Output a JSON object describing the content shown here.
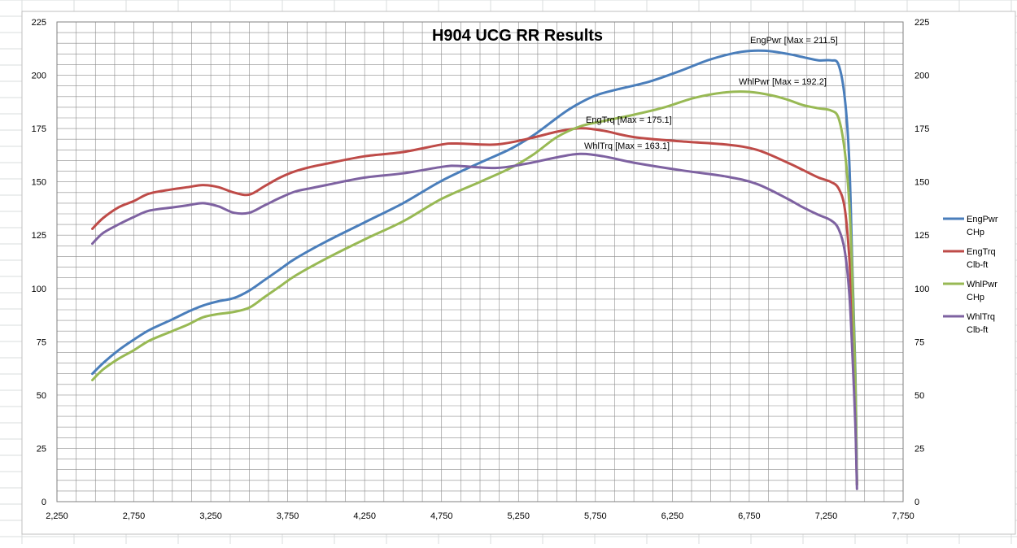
{
  "chart_data": {
    "type": "line",
    "title": "H904 UCG RR Results",
    "xlabel": "",
    "ylabel": "",
    "xlim": [
      2250,
      7750
    ],
    "ylim": [
      0,
      225
    ],
    "x_ticks": [
      "2,250",
      "2,750",
      "3,250",
      "3,750",
      "4,250",
      "4,750",
      "5,250",
      "5,750",
      "6,250",
      "6,750",
      "7,250",
      "7,750"
    ],
    "y_ticks": [
      "0",
      "25",
      "50",
      "75",
      "100",
      "125",
      "150",
      "175",
      "200",
      "225"
    ],
    "grid": "on",
    "legend_position": "right",
    "series": [
      {
        "name": "EngPwr",
        "unit": "CHp",
        "color": "#4a7ebb",
        "annotation": "EngPwr [Max = 211.5]",
        "points": [
          [
            2480,
            60
          ],
          [
            2550,
            65
          ],
          [
            2650,
            71
          ],
          [
            2750,
            76
          ],
          [
            2850,
            80.5
          ],
          [
            3000,
            85.5
          ],
          [
            3100,
            89
          ],
          [
            3200,
            92
          ],
          [
            3300,
            94
          ],
          [
            3400,
            95.5
          ],
          [
            3500,
            99
          ],
          [
            3600,
            104
          ],
          [
            3700,
            109
          ],
          [
            3800,
            114
          ],
          [
            4000,
            122
          ],
          [
            4250,
            131
          ],
          [
            4500,
            140
          ],
          [
            4750,
            150.5
          ],
          [
            5000,
            159
          ],
          [
            5200,
            165.5
          ],
          [
            5350,
            172
          ],
          [
            5500,
            180
          ],
          [
            5600,
            185
          ],
          [
            5750,
            190.5
          ],
          [
            5900,
            193.5
          ],
          [
            6100,
            197
          ],
          [
            6300,
            202
          ],
          [
            6500,
            207.5
          ],
          [
            6700,
            211
          ],
          [
            6850,
            211.5
          ],
          [
            7000,
            210
          ],
          [
            7100,
            208.5
          ],
          [
            7200,
            207
          ],
          [
            7280,
            207
          ],
          [
            7330,
            205
          ],
          [
            7370,
            190
          ],
          [
            7400,
            160
          ],
          [
            7420,
            110
          ],
          [
            7440,
            60
          ],
          [
            7450,
            8
          ]
        ]
      },
      {
        "name": "EngTrq",
        "unit": "Clb-ft",
        "color": "#be4b48",
        "annotation": "EngTrq [Max = 175.1]",
        "points": [
          [
            2480,
            128
          ],
          [
            2550,
            133
          ],
          [
            2650,
            138
          ],
          [
            2750,
            141
          ],
          [
            2850,
            144.5
          ],
          [
            3000,
            146.5
          ],
          [
            3100,
            147.5
          ],
          [
            3200,
            148.5
          ],
          [
            3300,
            147.5
          ],
          [
            3400,
            145
          ],
          [
            3500,
            144
          ],
          [
            3600,
            148
          ],
          [
            3700,
            152
          ],
          [
            3800,
            155
          ],
          [
            3900,
            157
          ],
          [
            4000,
            158.5
          ],
          [
            4250,
            162
          ],
          [
            4500,
            164
          ],
          [
            4750,
            167.5
          ],
          [
            4850,
            168
          ],
          [
            5100,
            167.5
          ],
          [
            5300,
            170
          ],
          [
            5500,
            173.5
          ],
          [
            5650,
            175.1
          ],
          [
            5800,
            174
          ],
          [
            6000,
            171
          ],
          [
            6300,
            169
          ],
          [
            6600,
            167.5
          ],
          [
            6800,
            165
          ],
          [
            7000,
            159
          ],
          [
            7100,
            155.5
          ],
          [
            7200,
            152
          ],
          [
            7280,
            150
          ],
          [
            7330,
            147
          ],
          [
            7370,
            138
          ],
          [
            7400,
            115
          ],
          [
            7420,
            85
          ],
          [
            7440,
            40
          ],
          [
            7450,
            8
          ]
        ]
      },
      {
        "name": "WhlPwr",
        "unit": "CHp",
        "color": "#98b954",
        "annotation": "WhlPwr [Max = 192.2]",
        "points": [
          [
            2480,
            57
          ],
          [
            2550,
            62
          ],
          [
            2650,
            67
          ],
          [
            2750,
            71
          ],
          [
            2850,
            75.5
          ],
          [
            3000,
            80
          ],
          [
            3100,
            83
          ],
          [
            3200,
            86.5
          ],
          [
            3300,
            88
          ],
          [
            3400,
            89
          ],
          [
            3500,
            91
          ],
          [
            3600,
            96
          ],
          [
            3700,
            101
          ],
          [
            3800,
            106
          ],
          [
            4000,
            114
          ],
          [
            4250,
            123
          ],
          [
            4500,
            131.5
          ],
          [
            4750,
            142
          ],
          [
            5000,
            150
          ],
          [
            5200,
            156.5
          ],
          [
            5350,
            163
          ],
          [
            5500,
            171
          ],
          [
            5650,
            176
          ],
          [
            5800,
            178.5
          ],
          [
            6000,
            181.5
          ],
          [
            6200,
            185
          ],
          [
            6400,
            189.5
          ],
          [
            6600,
            192
          ],
          [
            6750,
            192.2
          ],
          [
            6900,
            190.5
          ],
          [
            7000,
            188.5
          ],
          [
            7100,
            186
          ],
          [
            7200,
            184.5
          ],
          [
            7280,
            183.5
          ],
          [
            7330,
            180
          ],
          [
            7370,
            165
          ],
          [
            7400,
            140
          ],
          [
            7420,
            105
          ],
          [
            7440,
            55
          ],
          [
            7450,
            8
          ]
        ]
      },
      {
        "name": "WhlTrq",
        "unit": "Clb-ft",
        "color": "#7e62a1",
        "annotation": "WhlTrq [Max = 163.1]",
        "points": [
          [
            2480,
            121
          ],
          [
            2550,
            126
          ],
          [
            2650,
            130
          ],
          [
            2750,
            133.5
          ],
          [
            2850,
            136.5
          ],
          [
            3000,
            138
          ],
          [
            3100,
            139
          ],
          [
            3200,
            140
          ],
          [
            3300,
            138.5
          ],
          [
            3400,
            135.5
          ],
          [
            3500,
            135.5
          ],
          [
            3600,
            139
          ],
          [
            3700,
            142.5
          ],
          [
            3800,
            145.5
          ],
          [
            3900,
            147
          ],
          [
            4000,
            148.5
          ],
          [
            4250,
            152
          ],
          [
            4500,
            154
          ],
          [
            4750,
            157
          ],
          [
            4850,
            157.5
          ],
          [
            5100,
            156.5
          ],
          [
            5300,
            158.5
          ],
          [
            5500,
            161.5
          ],
          [
            5650,
            163.1
          ],
          [
            5800,
            162
          ],
          [
            6000,
            159
          ],
          [
            6300,
            155.5
          ],
          [
            6600,
            152.5
          ],
          [
            6800,
            149
          ],
          [
            7000,
            142
          ],
          [
            7100,
            138
          ],
          [
            7200,
            134.5
          ],
          [
            7280,
            132
          ],
          [
            7330,
            128
          ],
          [
            7370,
            118
          ],
          [
            7400,
            98
          ],
          [
            7420,
            70
          ],
          [
            7440,
            35
          ],
          [
            7450,
            6
          ]
        ]
      }
    ]
  }
}
